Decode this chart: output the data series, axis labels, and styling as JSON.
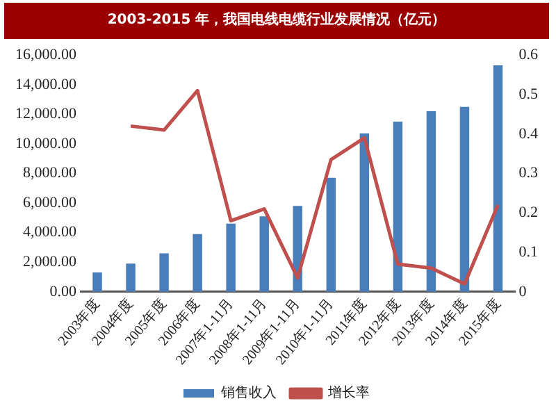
{
  "chart_data": {
    "type": "bar",
    "title": "2003-2015 年，我国电线电缆行业发展情况（亿元）",
    "categories": [
      "2003年度",
      "2004年度",
      "2005年度",
      "2006年度",
      "2007年1-11月",
      "2008年1-11月",
      "2009年1-11月",
      "2010年1-11月",
      "2011年度",
      "2012年度",
      "2013年度",
      "2014年度",
      "2015年度"
    ],
    "series": [
      {
        "name": "销售收入",
        "color": "#4a7ebb",
        "values": [
          1300,
          1900,
          2600,
          3900,
          4600,
          5100,
          5800,
          7700,
          10700,
          11500,
          12200,
          12500,
          15300
        ]
      },
      {
        "name": "增长率",
        "type": "line",
        "axis": "y2",
        "color": "#c0504d",
        "values": [
          null,
          0.42,
          0.41,
          0.51,
          0.18,
          0.21,
          0.035,
          0.335,
          0.39,
          0.07,
          0.06,
          0.02,
          0.22
        ]
      }
    ],
    "ylim": [
      0,
      16000
    ],
    "yticks": [
      {
        "value": 0,
        "label": "0.00"
      },
      {
        "value": 2000,
        "label": "2,000.00"
      },
      {
        "value": 4000,
        "label": "4,000.00"
      },
      {
        "value": 6000,
        "label": "6,000.00"
      },
      {
        "value": 8000,
        "label": "8,000.00"
      },
      {
        "value": 10000,
        "label": "10,000.00"
      },
      {
        "value": 12000,
        "label": "12,000.00"
      },
      {
        "value": 14000,
        "label": "14,000.00"
      },
      {
        "value": 16000,
        "label": "16,000.00"
      }
    ],
    "y2lim": [
      0,
      0.6
    ],
    "y2ticks": [
      0,
      0.1,
      0.2,
      0.3,
      0.4,
      0.5,
      0.6
    ],
    "grid": false,
    "legend": "bottom",
    "marker": "none"
  }
}
